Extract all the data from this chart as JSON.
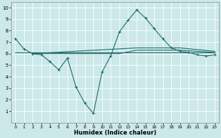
{
  "xlabel": "Humidex (Indice chaleur)",
  "bg_color": "#cce8e8",
  "grid_color": "#ffffff",
  "line_color": "#1a6b6b",
  "xlim": [
    -0.5,
    23.5
  ],
  "ylim": [
    0,
    10.5
  ],
  "xticks": [
    0,
    1,
    2,
    3,
    4,
    5,
    6,
    7,
    8,
    9,
    10,
    11,
    12,
    13,
    14,
    15,
    16,
    17,
    18,
    19,
    20,
    21,
    22,
    23
  ],
  "yticks": [
    1,
    2,
    3,
    4,
    5,
    6,
    7,
    8,
    9,
    10
  ],
  "line1_x": [
    0,
    1,
    2,
    3,
    4,
    5,
    6,
    7,
    8,
    9,
    10,
    11,
    12,
    13,
    14,
    15,
    16,
    17,
    18,
    19,
    20,
    21,
    22,
    23
  ],
  "line1_y": [
    7.3,
    6.4,
    6.0,
    5.9,
    5.3,
    4.6,
    5.6,
    3.1,
    1.7,
    0.8,
    4.4,
    5.8,
    7.9,
    8.9,
    9.8,
    9.1,
    8.2,
    7.3,
    6.5,
    6.2,
    6.1,
    5.9,
    5.8,
    5.9
  ],
  "line2_x": [
    0,
    23
  ],
  "line2_y": [
    6.1,
    6.1
  ],
  "line3_x": [
    2,
    14,
    19,
    23
  ],
  "line3_y": [
    6.0,
    6.5,
    6.5,
    6.2
  ],
  "line4_x": [
    2,
    12,
    14,
    19,
    23
  ],
  "line4_y": [
    6.0,
    6.0,
    6.3,
    6.3,
    6.1
  ]
}
